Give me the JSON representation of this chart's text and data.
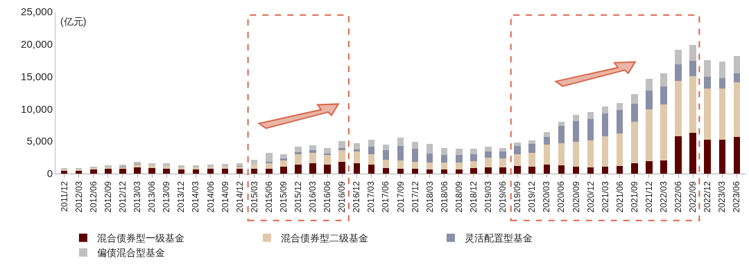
{
  "chart_data": {
    "type": "bar",
    "stacked": true,
    "ylabel": "(亿元)",
    "categories": [
      "2011/12",
      "2012/03",
      "2012/06",
      "2012/09",
      "2012/12",
      "2013/03",
      "2013/06",
      "2013/09",
      "2013/12",
      "2014/03",
      "2014/06",
      "2014/09",
      "2014/12",
      "2015/03",
      "2015/06",
      "2015/09",
      "2015/12",
      "2016/03",
      "2016/06",
      "2016/09",
      "2016/12",
      "2017/03",
      "2017/06",
      "2017/09",
      "2017/12",
      "2018/03",
      "2018/06",
      "2018/09",
      "2018/12",
      "2019/03",
      "2019/06",
      "2019/09",
      "2019/12",
      "2020/03",
      "2020/06",
      "2020/09",
      "2020/12",
      "2021/03",
      "2021/06",
      "2021/09",
      "2021/12",
      "2022/03",
      "2022/06",
      "2022/09",
      "2022/12",
      "2023/03",
      "2023/06"
    ],
    "series": [
      {
        "name": "混合债券型一级基金",
        "color": "#5c0000",
        "values": [
          400,
          480,
          640,
          700,
          700,
          950,
          850,
          800,
          600,
          650,
          700,
          700,
          700,
          750,
          750,
          1100,
          1350,
          1600,
          1350,
          1800,
          1650,
          1350,
          850,
          750,
          700,
          600,
          600,
          600,
          850,
          1000,
          950,
          1200,
          1100,
          1350,
          1250,
          1050,
          1000,
          1050,
          1200,
          1550,
          1900,
          2000,
          5800,
          6350,
          5200,
          5250,
          5650
        ]
      },
      {
        "name": "混合债券型二级基金",
        "color": "#e0c9aa",
        "values": [
          250,
          200,
          250,
          300,
          350,
          450,
          400,
          400,
          350,
          330,
          330,
          380,
          420,
          700,
          800,
          950,
          1650,
          1650,
          1550,
          1850,
          1750,
          1650,
          1300,
          1300,
          1100,
          1100,
          1100,
          1100,
          1100,
          1500,
          1400,
          1800,
          2150,
          3150,
          3450,
          3900,
          4150,
          4750,
          5050,
          6500,
          8050,
          8650,
          8500,
          8750,
          7900,
          7850,
          8400
        ]
      },
      {
        "name": "灵活配置型基金",
        "color": "#8a8fa8",
        "values": [
          0,
          0,
          30,
          0,
          50,
          50,
          0,
          0,
          0,
          0,
          0,
          0,
          30,
          0,
          250,
          250,
          300,
          350,
          200,
          300,
          300,
          1150,
          1450,
          2200,
          2000,
          1350,
          1200,
          1200,
          1000,
          950,
          1100,
          1300,
          1300,
          1200,
          2650,
          3150,
          3300,
          3450,
          3550,
          2700,
          2900,
          2800,
          2600,
          2350,
          1850,
          1650,
          1450
        ]
      },
      {
        "name": "偏债混合型基金",
        "color": "#c0c0c0",
        "values": [
          100,
          180,
          200,
          250,
          280,
          400,
          400,
          370,
          320,
          300,
          320,
          400,
          400,
          700,
          1400,
          700,
          850,
          800,
          900,
          1050,
          950,
          1050,
          900,
          1300,
          1150,
          1550,
          1100,
          1000,
          900,
          700,
          550,
          550,
          550,
          700,
          700,
          1000,
          1100,
          1150,
          1150,
          1500,
          1750,
          2000,
          2250,
          2450,
          2550,
          2550,
          2650
        ]
      }
    ],
    "ylim": [
      0,
      25000
    ],
    "yticks": [
      {
        "value": 0,
        "label": "0"
      },
      {
        "value": 5000,
        "label": "5,000"
      },
      {
        "value": 10000,
        "label": "10,000"
      },
      {
        "value": 15000,
        "label": "15,000"
      },
      {
        "value": 20000,
        "label": "20,000"
      },
      {
        "value": 25000,
        "label": "25,000"
      }
    ],
    "legend": "bottom"
  }
}
